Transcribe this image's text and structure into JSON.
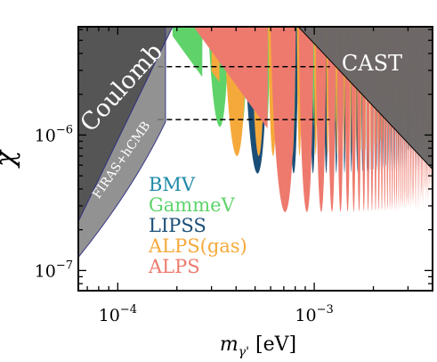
{
  "chart_data": {
    "type": "area",
    "title": "",
    "xlabel": "m_γ' [eV]",
    "xlabel_parts": {
      "symbol": "m",
      "sub": "γ'",
      "unit": "[eV]"
    },
    "ylabel": "χ",
    "xscale": "log",
    "yscale": "log",
    "xlim": [
      6.3e-05,
      0.004
    ],
    "ylim": [
      7.1e-08,
      6.3e-06
    ],
    "xticks": [
      {
        "value": 0.0001,
        "base": "10",
        "exp": "−4"
      },
      {
        "value": 0.001,
        "base": "10",
        "exp": "−3"
      }
    ],
    "yticks": [
      {
        "value": 1e-07,
        "base": "10",
        "exp": "−7"
      },
      {
        "value": 1e-06,
        "base": "10",
        "exp": "−6"
      }
    ],
    "legend_placement": "center-left",
    "series": [
      {
        "name": "BMV",
        "color": "#1f8aa8",
        "floor_chi": 2.5e-06,
        "min_mass": 0.00018
      },
      {
        "name": "GammeV",
        "color": "#5fd36a",
        "floor_chi": 1.15e-06,
        "min_mass": 0.00019
      },
      {
        "name": "LIPSS",
        "color": "#1b4e77",
        "floor_chi": 5.2e-07,
        "min_mass": 0.00028
      },
      {
        "name": "ALPS(gas)",
        "color": "#f6a93b",
        "floor_chi": 7e-07,
        "min_mass": 0.0003
      },
      {
        "name": "ALPS",
        "color": "#ee7a6e",
        "floor_chi": 2.7e-07,
        "min_mass": 0.00012
      }
    ],
    "excluded_regions": [
      {
        "name": "Coulomb",
        "color": "#555555"
      },
      {
        "name": "CAST",
        "color": "#666666"
      },
      {
        "name": "FIRAS+hCMB",
        "color": "#7f7f7f"
      }
    ],
    "dashed_lines_chi": [
      3.2e-06,
      1.3e-06
    ]
  }
}
